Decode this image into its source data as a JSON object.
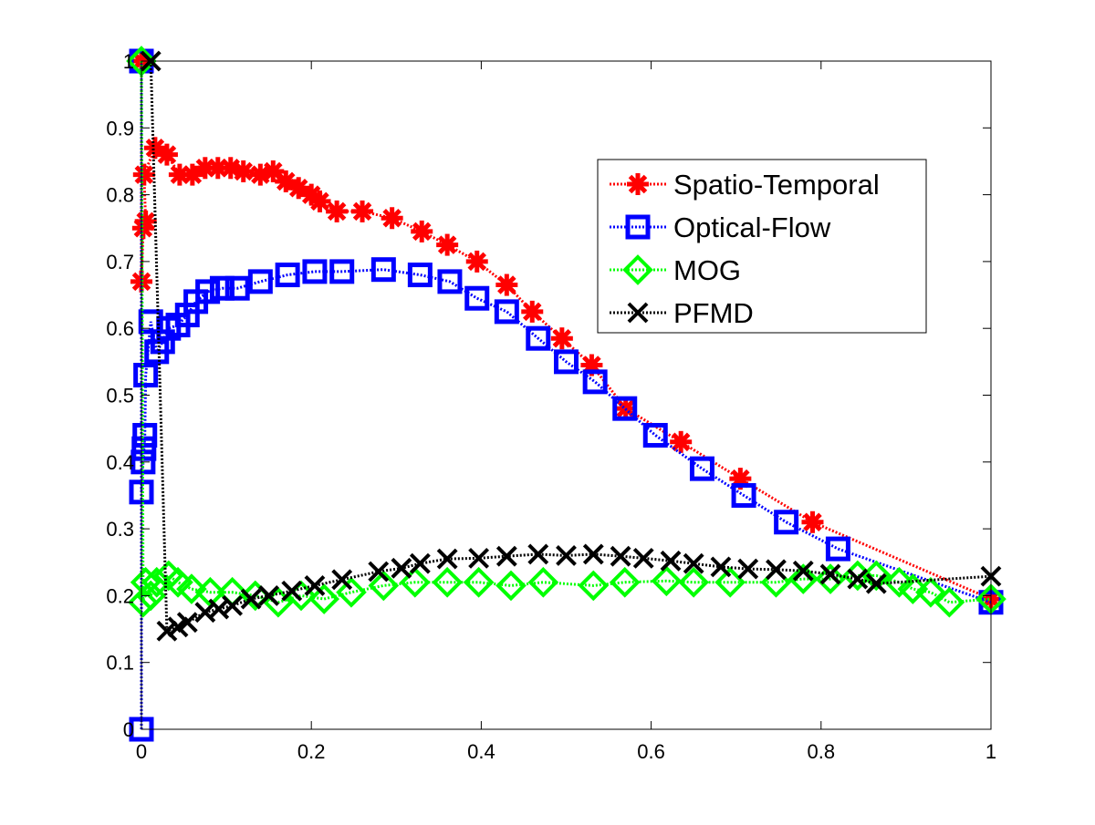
{
  "chart_data": {
    "type": "line",
    "title": "",
    "xlabel": "",
    "ylabel": "",
    "xlim": [
      0,
      1
    ],
    "ylim": [
      0,
      1
    ],
    "grid": false,
    "legend_position": "top-right",
    "xticks": [
      "0",
      "0.2",
      "0.4",
      "0.6",
      "0.8",
      "1"
    ],
    "xtick_values": [
      0,
      0.2,
      0.4,
      0.6,
      0.8,
      1
    ],
    "yticks": [
      "0",
      "0.1",
      "0.2",
      "0.3",
      "0.4",
      "0.5",
      "0.6",
      "0.7",
      "0.8",
      "0.9",
      "1"
    ],
    "ytick_values": [
      0,
      0.1,
      0.2,
      0.3,
      0.4,
      0.5,
      0.6,
      0.7,
      0.8,
      0.9,
      1
    ],
    "series": [
      {
        "name": "Spatio-Temporal",
        "color": "#ff0000",
        "marker": "asterisk",
        "points": [
          [
            0,
            1.0
          ],
          [
            0,
            0.67
          ],
          [
            0.002,
            0.75
          ],
          [
            0.005,
            0.76
          ],
          [
            0.003,
            0.83
          ],
          [
            0.016,
            0.87
          ],
          [
            0.03,
            0.86
          ],
          [
            0.045,
            0.83
          ],
          [
            0.06,
            0.83
          ],
          [
            0.075,
            0.84
          ],
          [
            0.09,
            0.84
          ],
          [
            0.105,
            0.84
          ],
          [
            0.12,
            0.835
          ],
          [
            0.14,
            0.83
          ],
          [
            0.155,
            0.835
          ],
          [
            0.17,
            0.82
          ],
          [
            0.185,
            0.81
          ],
          [
            0.2,
            0.8
          ],
          [
            0.21,
            0.79
          ],
          [
            0.23,
            0.775
          ],
          [
            0.26,
            0.775
          ],
          [
            0.295,
            0.765
          ],
          [
            0.33,
            0.745
          ],
          [
            0.36,
            0.725
          ],
          [
            0.395,
            0.7
          ],
          [
            0.43,
            0.665
          ],
          [
            0.46,
            0.625
          ],
          [
            0.495,
            0.585
          ],
          [
            0.53,
            0.545
          ],
          [
            0.57,
            0.48
          ],
          [
            0.635,
            0.43
          ],
          [
            0.705,
            0.375
          ],
          [
            0.79,
            0.31
          ],
          [
            1.0,
            0.195
          ]
        ]
      },
      {
        "name": "Optical-Flow",
        "color": "#0000ff",
        "marker": "square",
        "points": [
          [
            0,
            0
          ],
          [
            0,
            1.0
          ],
          [
            0,
            0.355
          ],
          [
            0.002,
            0.4
          ],
          [
            0.003,
            0.42
          ],
          [
            0.004,
            0.44
          ],
          [
            0.005,
            0.53
          ],
          [
            0.011,
            0.61
          ],
          [
            0.018,
            0.565
          ],
          [
            0.025,
            0.58
          ],
          [
            0.032,
            0.6
          ],
          [
            0.043,
            0.605
          ],
          [
            0.054,
            0.62
          ],
          [
            0.064,
            0.64
          ],
          [
            0.078,
            0.655
          ],
          [
            0.095,
            0.66
          ],
          [
            0.113,
            0.66
          ],
          [
            0.14,
            0.67
          ],
          [
            0.172,
            0.68
          ],
          [
            0.204,
            0.685
          ],
          [
            0.236,
            0.685
          ],
          [
            0.285,
            0.688
          ],
          [
            0.328,
            0.68
          ],
          [
            0.363,
            0.67
          ],
          [
            0.395,
            0.645
          ],
          [
            0.43,
            0.625
          ],
          [
            0.467,
            0.585
          ],
          [
            0.5,
            0.55
          ],
          [
            0.534,
            0.52
          ],
          [
            0.569,
            0.48
          ],
          [
            0.605,
            0.44
          ],
          [
            0.66,
            0.39
          ],
          [
            0.709,
            0.35
          ],
          [
            0.759,
            0.31
          ],
          [
            0.82,
            0.27
          ],
          [
            1.0,
            0.19
          ]
        ]
      },
      {
        "name": "MOG",
        "color": "#00ff00",
        "marker": "diamond",
        "points": [
          [
            0,
            1.0
          ],
          [
            0.002,
            0.19
          ],
          [
            0.005,
            0.22
          ],
          [
            0.011,
            0.2
          ],
          [
            0.018,
            0.22
          ],
          [
            0.032,
            0.23
          ],
          [
            0.043,
            0.22
          ],
          [
            0.059,
            0.21
          ],
          [
            0.081,
            0.205
          ],
          [
            0.107,
            0.205
          ],
          [
            0.134,
            0.2
          ],
          [
            0.161,
            0.19
          ],
          [
            0.188,
            0.2
          ],
          [
            0.215,
            0.195
          ],
          [
            0.247,
            0.205
          ],
          [
            0.285,
            0.215
          ],
          [
            0.322,
            0.22
          ],
          [
            0.36,
            0.22
          ],
          [
            0.397,
            0.22
          ],
          [
            0.435,
            0.215
          ],
          [
            0.473,
            0.22
          ],
          [
            0.532,
            0.215
          ],
          [
            0.569,
            0.22
          ],
          [
            0.618,
            0.222
          ],
          [
            0.65,
            0.22
          ],
          [
            0.693,
            0.22
          ],
          [
            0.747,
            0.22
          ],
          [
            0.779,
            0.225
          ],
          [
            0.811,
            0.225
          ],
          [
            0.843,
            0.23
          ],
          [
            0.865,
            0.23
          ],
          [
            0.892,
            0.22
          ],
          [
            0.908,
            0.21
          ],
          [
            0.929,
            0.205
          ],
          [
            0.951,
            0.19
          ],
          [
            1.0,
            0.195
          ]
        ]
      },
      {
        "name": "PFMD",
        "color": "#000000",
        "marker": "x",
        "points": [
          [
            0.011,
            1.0
          ],
          [
            0.03,
            0.147
          ],
          [
            0.043,
            0.153
          ],
          [
            0.054,
            0.16
          ],
          [
            0.075,
            0.175
          ],
          [
            0.091,
            0.18
          ],
          [
            0.107,
            0.185
          ],
          [
            0.129,
            0.195
          ],
          [
            0.15,
            0.2
          ],
          [
            0.177,
            0.207
          ],
          [
            0.204,
            0.215
          ],
          [
            0.236,
            0.224
          ],
          [
            0.279,
            0.236
          ],
          [
            0.306,
            0.241
          ],
          [
            0.328,
            0.248
          ],
          [
            0.36,
            0.255
          ],
          [
            0.397,
            0.256
          ],
          [
            0.43,
            0.259
          ],
          [
            0.467,
            0.262
          ],
          [
            0.5,
            0.26
          ],
          [
            0.532,
            0.262
          ],
          [
            0.564,
            0.259
          ],
          [
            0.591,
            0.256
          ],
          [
            0.623,
            0.252
          ],
          [
            0.65,
            0.248
          ],
          [
            0.682,
            0.243
          ],
          [
            0.714,
            0.24
          ],
          [
            0.747,
            0.239
          ],
          [
            0.779,
            0.237
          ],
          [
            0.811,
            0.232
          ],
          [
            0.843,
            0.225
          ],
          [
            0.865,
            0.218
          ],
          [
            1.0,
            0.229
          ]
        ]
      }
    ]
  }
}
